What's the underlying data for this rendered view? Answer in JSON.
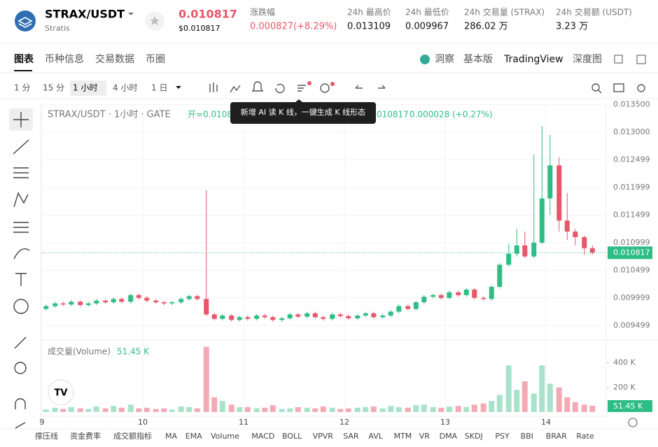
{
  "header": {
    "pair": "STRAX/USDT",
    "name": "Stratis",
    "price": "0.010817",
    "price_usd": "$0.010817",
    "change_label": "涨跌幅",
    "change": "0.000827(+8.29%)",
    "stats": [
      {
        "label": "24h 最高价",
        "value": "0.013109"
      },
      {
        "label": "24h 最低价",
        "value": "0.009967"
      },
      {
        "label": "24h 交易量 (STRAX)",
        "value": "286.02 万"
      },
      {
        "label": "24h 交易额 (USDT)",
        "value": "3.23 万"
      }
    ]
  },
  "tabs": [
    "图表",
    "币种信息",
    "交易数据",
    "币圈"
  ],
  "views": [
    "洞察",
    "基本版",
    "TradingView",
    "深度图"
  ],
  "intervals": [
    "1 分",
    "15 分",
    "1 小时",
    "4 小时",
    "1 日"
  ],
  "tooltip": "新增 AI 读 K 线，一键生成 K 线形态",
  "indicators": [
    "撑压线",
    "资金费率",
    "成交额指标",
    "MA",
    "EMA",
    "Volume",
    "MACD",
    "BOLL",
    "VPVR",
    "SAR",
    "AVL",
    "MTM",
    "VR",
    "DMA",
    "SKDJ",
    "PSY",
    "BBI",
    "BRAR",
    "Rate"
  ],
  "chart_data": {
    "type": "candlestick",
    "title": "STRAX/USDT · 1小时 · GATE",
    "legend_open": "开=0.0108",
    "legend_close": "010817",
    "legend_change": "0.000028 (+0.27%)",
    "volume_title": "成交量(Volume)",
    "volume_current": "51.45 K",
    "current_price": {
      "value": 0.010817,
      "label": "0.010817"
    },
    "up_color": "#2ebd85",
    "down_color": "#e8566a",
    "up_volume_color": "#a8e2cc",
    "down_volume_color": "#f4aab5",
    "xlim": [
      9,
      14.597
    ],
    "xticks": [
      9,
      10,
      11,
      12,
      13,
      14
    ],
    "ylim": [
      0.00925,
      0.01352
    ],
    "yticks": [
      {
        "value": 0.0135,
        "label": "0.013500"
      },
      {
        "value": 0.013,
        "label": "0.013000"
      },
      {
        "value": 0.012499,
        "label": "0.012499"
      },
      {
        "value": 0.011999,
        "label": "0.011999"
      },
      {
        "value": 0.011499,
        "label": "0.011499"
      },
      {
        "value": 0.010999,
        "label": "0.010999"
      },
      {
        "value": 0.010499,
        "label": "0.010499"
      },
      {
        "value": 0.009999,
        "label": "0.009999"
      },
      {
        "value": 0.009499,
        "label": "0.009499"
      }
    ],
    "vlim": [
      0,
      580000
    ],
    "vticks": [
      {
        "value": 400000,
        "label": "400 K"
      },
      {
        "value": 200000,
        "label": "200 K"
      }
    ],
    "x": [
      9.04,
      9.13,
      9.21,
      9.29,
      9.38,
      9.46,
      9.54,
      9.63,
      9.71,
      9.79,
      9.88,
      9.96,
      10.04,
      10.13,
      10.21,
      10.29,
      10.38,
      10.46,
      10.54,
      10.63,
      10.71,
      10.79,
      10.88,
      10.96,
      11.04,
      11.13,
      11.21,
      11.29,
      11.38,
      11.46,
      11.54,
      11.63,
      11.71,
      11.79,
      11.88,
      11.96,
      12.04,
      12.13,
      12.21,
      12.29,
      12.38,
      12.46,
      12.54,
      12.63,
      12.71,
      12.79,
      12.88,
      12.96,
      13.04,
      13.13,
      13.21,
      13.29,
      13.38,
      13.46,
      13.54,
      13.63,
      13.71,
      13.79,
      13.88,
      13.96,
      14.04,
      14.13,
      14.21,
      14.29,
      14.38,
      14.46
    ],
    "open": [
      0.0098,
      0.00985,
      0.0099,
      0.00988,
      0.00993,
      0.00987,
      0.0099,
      0.00995,
      0.00992,
      0.00998,
      0.00993,
      0.01005,
      0.01,
      0.00995,
      0.00992,
      0.0099,
      0.00992,
      0.00998,
      0.01003,
      0.00998,
      0.0097,
      0.00962,
      0.00968,
      0.0096,
      0.00965,
      0.00962,
      0.00968,
      0.00965,
      0.0096,
      0.00963,
      0.0097,
      0.00966,
      0.00972,
      0.00965,
      0.00962,
      0.0097,
      0.00967,
      0.00963,
      0.00968,
      0.00972,
      0.00965,
      0.00968,
      0.00975,
      0.00985,
      0.0098,
      0.00992,
      0.01002,
      0.01005,
      0.01,
      0.0101,
      0.01005,
      0.01015,
      0.01,
      0.00998,
      0.0102,
      0.0106,
      0.0108,
      0.01095,
      0.01075,
      0.011,
      0.0118,
      0.0124,
      0.0114,
      0.0112,
      0.0111,
      0.0109
    ],
    "high": [
      0.00988,
      0.00993,
      0.00993,
      0.00996,
      0.00996,
      0.00993,
      0.00998,
      0.00998,
      0.01001,
      0.01001,
      0.01008,
      0.01008,
      0.01003,
      0.00998,
      0.00995,
      0.00995,
      0.01001,
      0.01006,
      0.01006,
      0.01195,
      0.00973,
      0.00971,
      0.00971,
      0.00968,
      0.00968,
      0.00971,
      0.00971,
      0.00968,
      0.00966,
      0.00973,
      0.00973,
      0.00975,
      0.00975,
      0.00968,
      0.00973,
      0.00973,
      0.0097,
      0.00971,
      0.00975,
      0.00975,
      0.00971,
      0.00978,
      0.00988,
      0.00988,
      0.00995,
      0.01005,
      0.01008,
      0.01008,
      0.01013,
      0.01013,
      0.01018,
      0.01018,
      0.01003,
      0.01023,
      0.01063,
      0.01098,
      0.01125,
      0.0112,
      0.0126,
      0.01311,
      0.01295,
      0.01255,
      0.0119,
      0.01125,
      0.01113,
      0.01095
    ],
    "low": [
      0.00977,
      0.00982,
      0.00985,
      0.00985,
      0.00984,
      0.00984,
      0.00987,
      0.00989,
      0.00989,
      0.0099,
      0.0099,
      0.00997,
      0.00992,
      0.00989,
      0.00987,
      0.00987,
      0.00989,
      0.00995,
      0.00995,
      0.00967,
      0.00959,
      0.00959,
      0.00957,
      0.00957,
      0.00959,
      0.00959,
      0.00962,
      0.00957,
      0.00957,
      0.0096,
      0.00963,
      0.00963,
      0.00962,
      0.00959,
      0.00959,
      0.00964,
      0.0096,
      0.0096,
      0.00965,
      0.00962,
      0.00962,
      0.00965,
      0.00972,
      0.00977,
      0.00977,
      0.00989,
      0.00999,
      0.00997,
      0.00997,
      0.01002,
      0.01002,
      0.00997,
      0.00995,
      0.00995,
      0.01017,
      0.01057,
      0.01075,
      0.01072,
      0.01072,
      0.01097,
      0.0115,
      0.0112,
      0.01105,
      0.01095,
      0.01078,
      0.01078
    ],
    "close": [
      0.00985,
      0.0099,
      0.00988,
      0.00993,
      0.00987,
      0.0099,
      0.00995,
      0.00992,
      0.00998,
      0.00993,
      0.01005,
      0.01,
      0.00995,
      0.00992,
      0.0099,
      0.00992,
      0.00998,
      0.01003,
      0.00998,
      0.0097,
      0.00962,
      0.00968,
      0.0096,
      0.00965,
      0.00962,
      0.00968,
      0.00965,
      0.0096,
      0.00963,
      0.0097,
      0.00966,
      0.00972,
      0.00965,
      0.00962,
      0.0097,
      0.00967,
      0.00963,
      0.00968,
      0.00972,
      0.00965,
      0.00968,
      0.00975,
      0.00985,
      0.0098,
      0.00992,
      0.01002,
      0.01005,
      0.01,
      0.0101,
      0.01005,
      0.01015,
      0.01,
      0.00998,
      0.0102,
      0.0106,
      0.0108,
      0.01095,
      0.01075,
      0.011,
      0.0118,
      0.0124,
      0.0114,
      0.0112,
      0.0111,
      0.0109,
      0.010817
    ],
    "volume": [
      20000,
      35000,
      25000,
      40000,
      30000,
      25000,
      45000,
      30000,
      50000,
      35000,
      60000,
      30000,
      35000,
      25000,
      30000,
      20000,
      45000,
      40000,
      30000,
      530000,
      120000,
      90000,
      60000,
      40000,
      40000,
      30000,
      35000,
      55000,
      25000,
      30000,
      40000,
      35000,
      30000,
      45000,
      35000,
      25000,
      30000,
      35000,
      40000,
      45000,
      30000,
      50000,
      40000,
      35000,
      55000,
      60000,
      40000,
      35000,
      45000,
      50000,
      40000,
      60000,
      70000,
      90000,
      140000,
      380000,
      180000,
      250000,
      150000,
      380000,
      230000,
      200000,
      120000,
      80000,
      60000,
      51450
    ]
  }
}
